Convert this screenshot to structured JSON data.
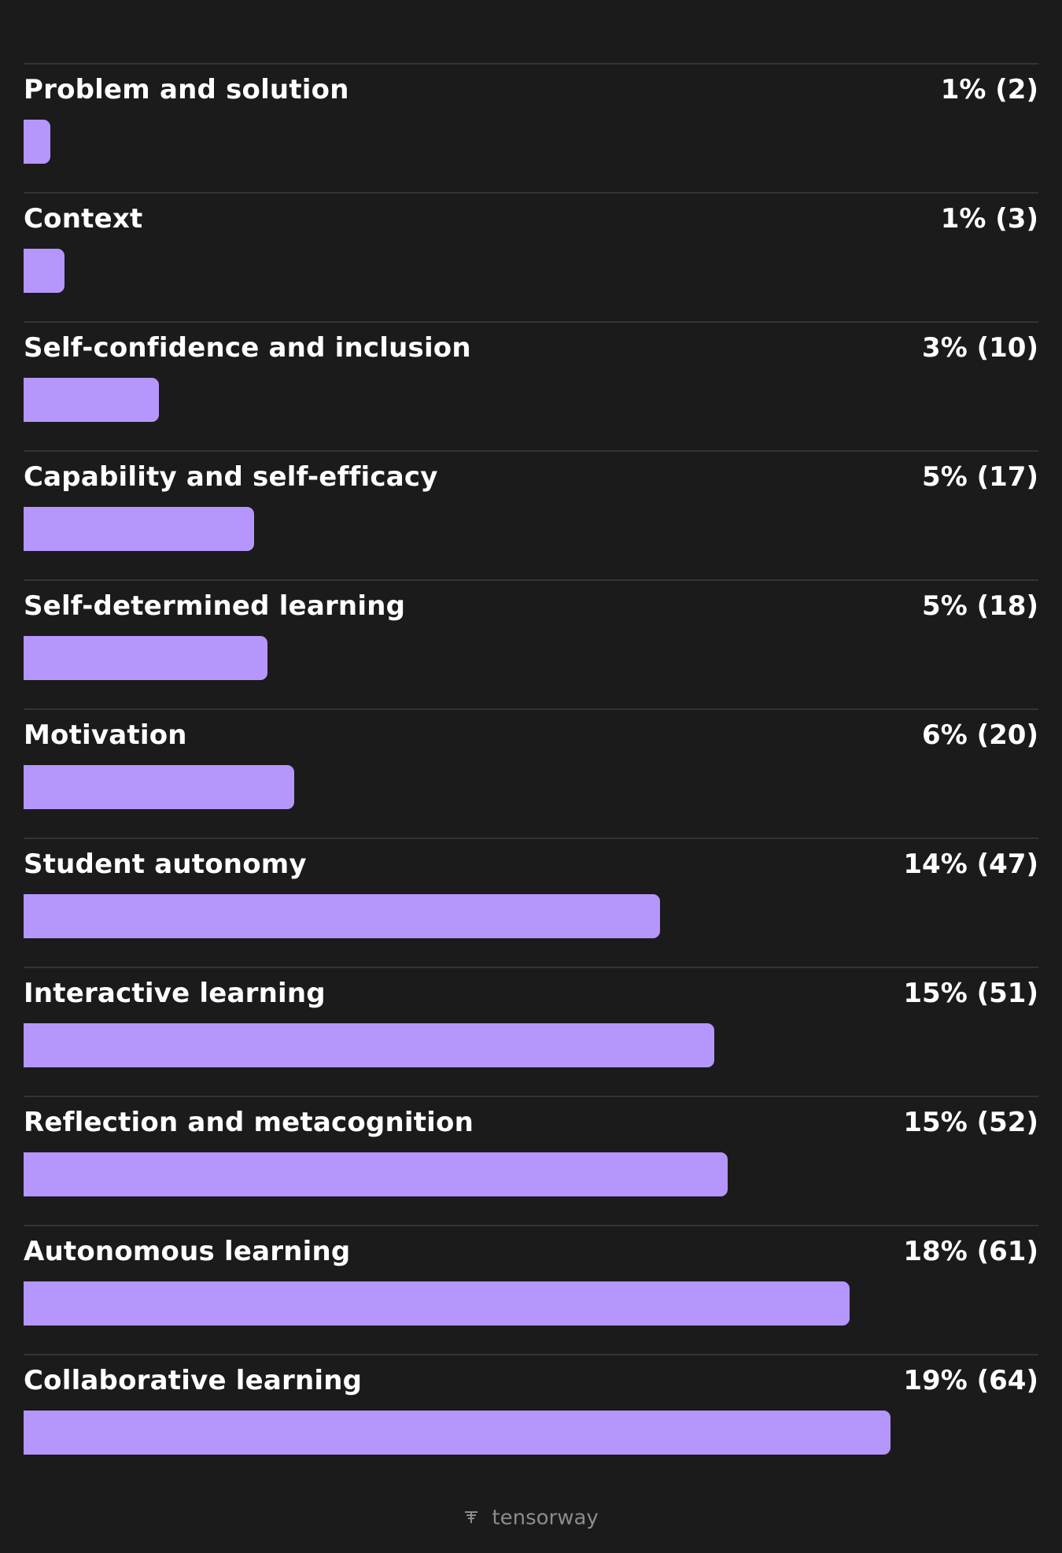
{
  "chart_data": {
    "type": "bar",
    "orientation": "horizontal",
    "categories": [
      "Problem and solution",
      "Context",
      "Self-confidence and inclusion",
      "Capability and self-efficacy",
      "Self-determined learning",
      "Motivation",
      "Student autonomy",
      "Interactive learning",
      "Reflection and metacognition",
      "Autonomous learning",
      "Collaborative learning"
    ],
    "counts": [
      2,
      3,
      10,
      17,
      18,
      20,
      47,
      51,
      52,
      61,
      64
    ],
    "value_labels": [
      "1% (2)",
      "1% (3)",
      "3% (10)",
      "5% (17)",
      "5% (18)",
      "6% (20)",
      "14% (47)",
      "15% (51)",
      "15% (52)",
      "18% (61)",
      "19% (64)"
    ],
    "bar_color": "#b596fc",
    "grid": false,
    "legend": "none"
  },
  "footer": {
    "brand": "tensorway"
  }
}
